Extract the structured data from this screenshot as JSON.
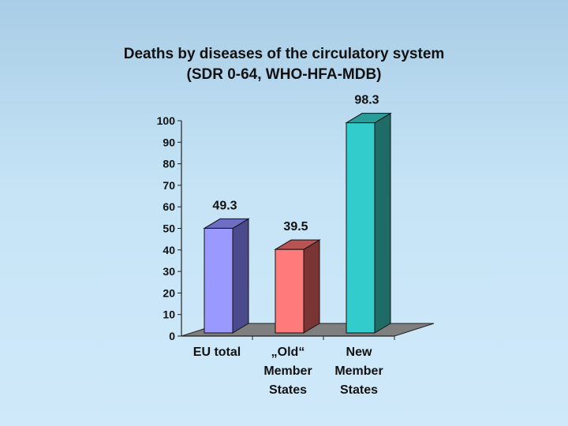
{
  "chart_data": {
    "type": "bar",
    "title": "Deaths by diseases of the circulatory system",
    "subtitle": "(SDR 0-64, WHO-HFA-MDB)",
    "categories": [
      "EU total",
      "„Old“ Member States",
      "New Member States"
    ],
    "category_lines": [
      [
        "EU total"
      ],
      [
        "„Old“",
        "Member",
        "States"
      ],
      [
        "New",
        "Member",
        "States"
      ]
    ],
    "values": [
      49.3,
      39.5,
      98.3
    ],
    "value_labels": [
      "49.3",
      "39.5",
      "98.3"
    ],
    "ylim": [
      0,
      100
    ],
    "yticks": [
      0,
      10,
      20,
      30,
      40,
      50,
      60,
      70,
      80,
      90,
      100
    ],
    "xlabel": "",
    "ylabel": "",
    "grid": false,
    "colors": [
      {
        "front": "#9999ff",
        "side": "#4a4a8c",
        "top": "#6e6ec4"
      },
      {
        "front": "#ff7b7b",
        "side": "#7a3434",
        "top": "#b95454"
      },
      {
        "front": "#33cccc",
        "side": "#1f6b66",
        "top": "#2a9d99"
      }
    ],
    "floor_color": "#7f7f7f"
  }
}
